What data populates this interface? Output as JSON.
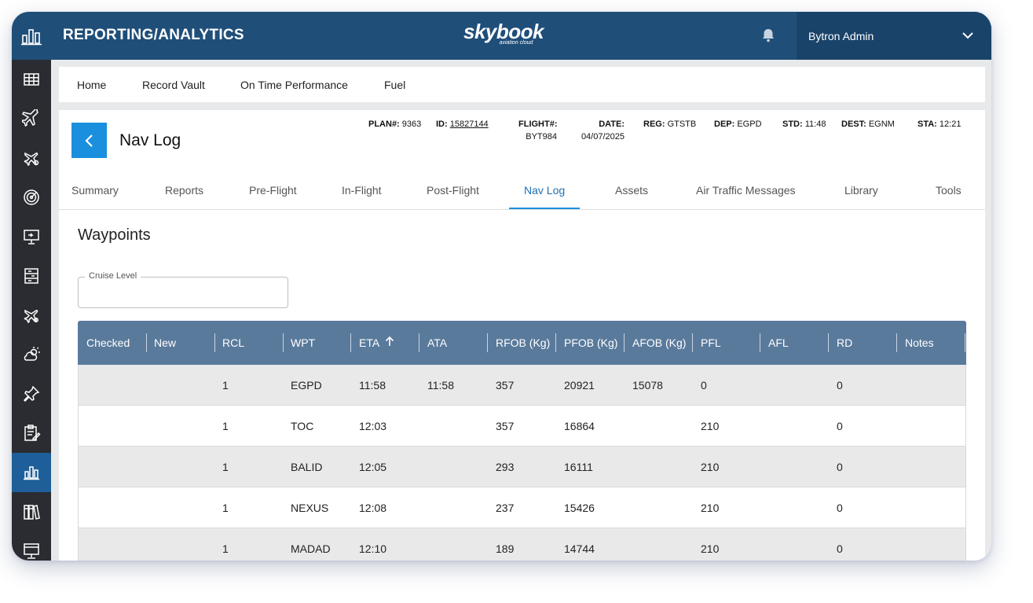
{
  "header": {
    "app_title": "REPORTING/ANALYTICS",
    "brand_name": "skybook",
    "brand_tagline": "aviation cloud",
    "user_name": "Bytron Admin"
  },
  "sidebar": {
    "items": [
      {
        "icon": "grid-icon"
      },
      {
        "icon": "airplane-icon"
      },
      {
        "icon": "flight-ops-icon"
      },
      {
        "icon": "radar-icon"
      },
      {
        "icon": "presentation-icon"
      },
      {
        "icon": "records-icon"
      },
      {
        "icon": "aircraft-maintenance-icon"
      },
      {
        "icon": "weather-icon"
      },
      {
        "icon": "pin-icon"
      },
      {
        "icon": "checklist-icon"
      },
      {
        "icon": "reporting-icon",
        "active": true
      },
      {
        "icon": "library-icon"
      },
      {
        "icon": "display-icon"
      }
    ]
  },
  "menu": {
    "items": [
      "Home",
      "Record Vault",
      "On Time Performance",
      "Fuel"
    ]
  },
  "page": {
    "title": "Nav Log",
    "meta": {
      "plan_label": "PLAN#:",
      "plan_value": "9363",
      "id_label": "ID:",
      "id_value": "15827144",
      "flight_label": "FLIGHT#:",
      "flight_value": "BYT984",
      "date_label": "DATE:",
      "date_value": "04/07/2025",
      "reg_label": "REG:",
      "reg_value": "GTSTB",
      "dep_label": "DEP:",
      "dep_value": "EGPD",
      "std_label": "STD:",
      "std_value": "11:48",
      "dest_label": "DEST:",
      "dest_value": "EGNM",
      "sta_label": "STA:",
      "sta_value": "12:21"
    },
    "tabs": [
      "Summary",
      "Reports",
      "Pre-Flight",
      "In-Flight",
      "Post-Flight",
      "Nav Log",
      "Assets",
      "Air Traffic Messages",
      "Library",
      "Tools"
    ],
    "active_tab": "Nav Log"
  },
  "waypoints": {
    "title": "Waypoints",
    "cruise_level_label": "Cruise Level",
    "cruise_level_value": "",
    "columns": [
      "Checked",
      "New",
      "RCL",
      "WPT",
      "ETA",
      "ATA",
      "RFOB (Kg)",
      "PFOB (Kg)",
      "AFOB (Kg)",
      "PFL",
      "AFL",
      "RD",
      "Notes"
    ],
    "rows": [
      {
        "checked": "",
        "new": "",
        "rcl": "1",
        "wpt": "EGPD",
        "eta": "11:58",
        "ata": "11:58",
        "rfob": "357",
        "pfob": "20921",
        "afob": "15078",
        "pfl": "0",
        "afl": "",
        "rd": "0",
        "notes": ""
      },
      {
        "checked": "",
        "new": "",
        "rcl": "1",
        "wpt": "TOC",
        "eta": "12:03",
        "ata": "",
        "rfob": "357",
        "pfob": "16864",
        "afob": "",
        "pfl": "210",
        "afl": "",
        "rd": "0",
        "notes": ""
      },
      {
        "checked": "",
        "new": "",
        "rcl": "1",
        "wpt": "BALID",
        "eta": "12:05",
        "ata": "",
        "rfob": "293",
        "pfob": "16111",
        "afob": "",
        "pfl": "210",
        "afl": "",
        "rd": "0",
        "notes": ""
      },
      {
        "checked": "",
        "new": "",
        "rcl": "1",
        "wpt": "NEXUS",
        "eta": "12:08",
        "ata": "",
        "rfob": "237",
        "pfob": "15426",
        "afob": "",
        "pfl": "210",
        "afl": "",
        "rd": "0",
        "notes": ""
      },
      {
        "checked": "",
        "new": "",
        "rcl": "1",
        "wpt": "MADAD",
        "eta": "12:10",
        "ata": "",
        "rfob": "189",
        "pfob": "14744",
        "afob": "",
        "pfl": "210",
        "afl": "",
        "rd": "0",
        "notes": ""
      }
    ]
  },
  "colors": {
    "topbar": "#1f4e79",
    "sidebar": "#2a2c31",
    "accent": "#1a8fde",
    "table_header": "#5a7a9c"
  }
}
